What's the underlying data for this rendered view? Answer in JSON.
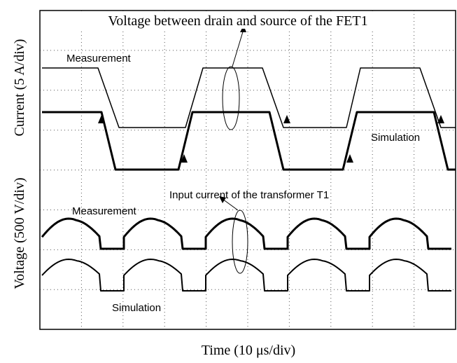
{
  "figure": {
    "title": "Voltage between drain and source of the FET1",
    "y_label_voltage": "Voltage (500 V/div)",
    "y_label_current": "Current (5 A/div)",
    "x_label": "Time (10 μs/div)",
    "annotations": {
      "top_measurement": "Measurement",
      "top_simulation": "Simulation",
      "bottom_title": "Input current of the transformer T1",
      "bottom_measurement": "Measurement",
      "bottom_simulation": "Simulation"
    }
  }
}
